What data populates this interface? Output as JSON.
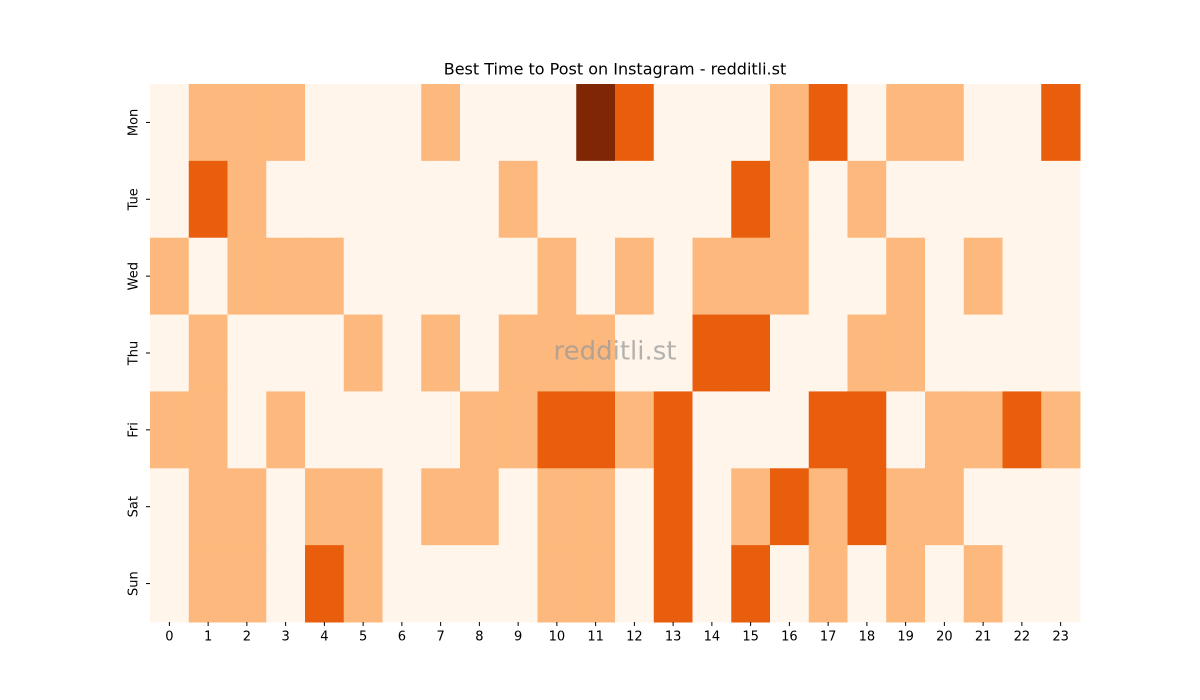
{
  "chart_data": {
    "type": "heatmap",
    "title": "Best Time to Post on Instagram - redditli.st",
    "watermark": "redditli.st",
    "x": [
      0,
      1,
      2,
      3,
      4,
      5,
      6,
      7,
      8,
      9,
      10,
      11,
      12,
      13,
      14,
      15,
      16,
      17,
      18,
      19,
      20,
      21,
      22,
      23
    ],
    "y": [
      "Mon",
      "Tue",
      "Wed",
      "Thu",
      "Fri",
      "Sat",
      "Sun"
    ],
    "values": [
      [
        0,
        1,
        1,
        1,
        0,
        0,
        0,
        1,
        0,
        0,
        0,
        3,
        2,
        0,
        0,
        0,
        1,
        2,
        0,
        1,
        1,
        0,
        0,
        2
      ],
      [
        0,
        2,
        1,
        0,
        0,
        0,
        0,
        0,
        0,
        1,
        0,
        0,
        0,
        0,
        0,
        2,
        1,
        0,
        1,
        0,
        0,
        0,
        0,
        0
      ],
      [
        1,
        0,
        1,
        1,
        1,
        0,
        0,
        0,
        0,
        0,
        1,
        0,
        1,
        0,
        1,
        1,
        1,
        0,
        0,
        1,
        0,
        1,
        0,
        0
      ],
      [
        0,
        1,
        0,
        0,
        0,
        1,
        0,
        1,
        0,
        1,
        1,
        1,
        0,
        0,
        2,
        2,
        0,
        0,
        1,
        1,
        0,
        0,
        0,
        0
      ],
      [
        1,
        1,
        0,
        1,
        0,
        0,
        0,
        0,
        1,
        1,
        2,
        2,
        1,
        2,
        0,
        0,
        0,
        2,
        2,
        0,
        1,
        1,
        2,
        1
      ],
      [
        0,
        1,
        1,
        0,
        1,
        1,
        0,
        1,
        1,
        0,
        1,
        1,
        0,
        2,
        0,
        1,
        2,
        1,
        2,
        1,
        1,
        0,
        0,
        0
      ],
      [
        0,
        1,
        1,
        0,
        2,
        1,
        0,
        0,
        0,
        0,
        1,
        1,
        0,
        2,
        0,
        2,
        0,
        1,
        0,
        1,
        0,
        1,
        0,
        0
      ]
    ],
    "vlim": [
      0,
      3
    ],
    "colorscale": [
      "#fff5eb",
      "#fdb87d",
      "#e95e0d",
      "#7f2704"
    ]
  }
}
